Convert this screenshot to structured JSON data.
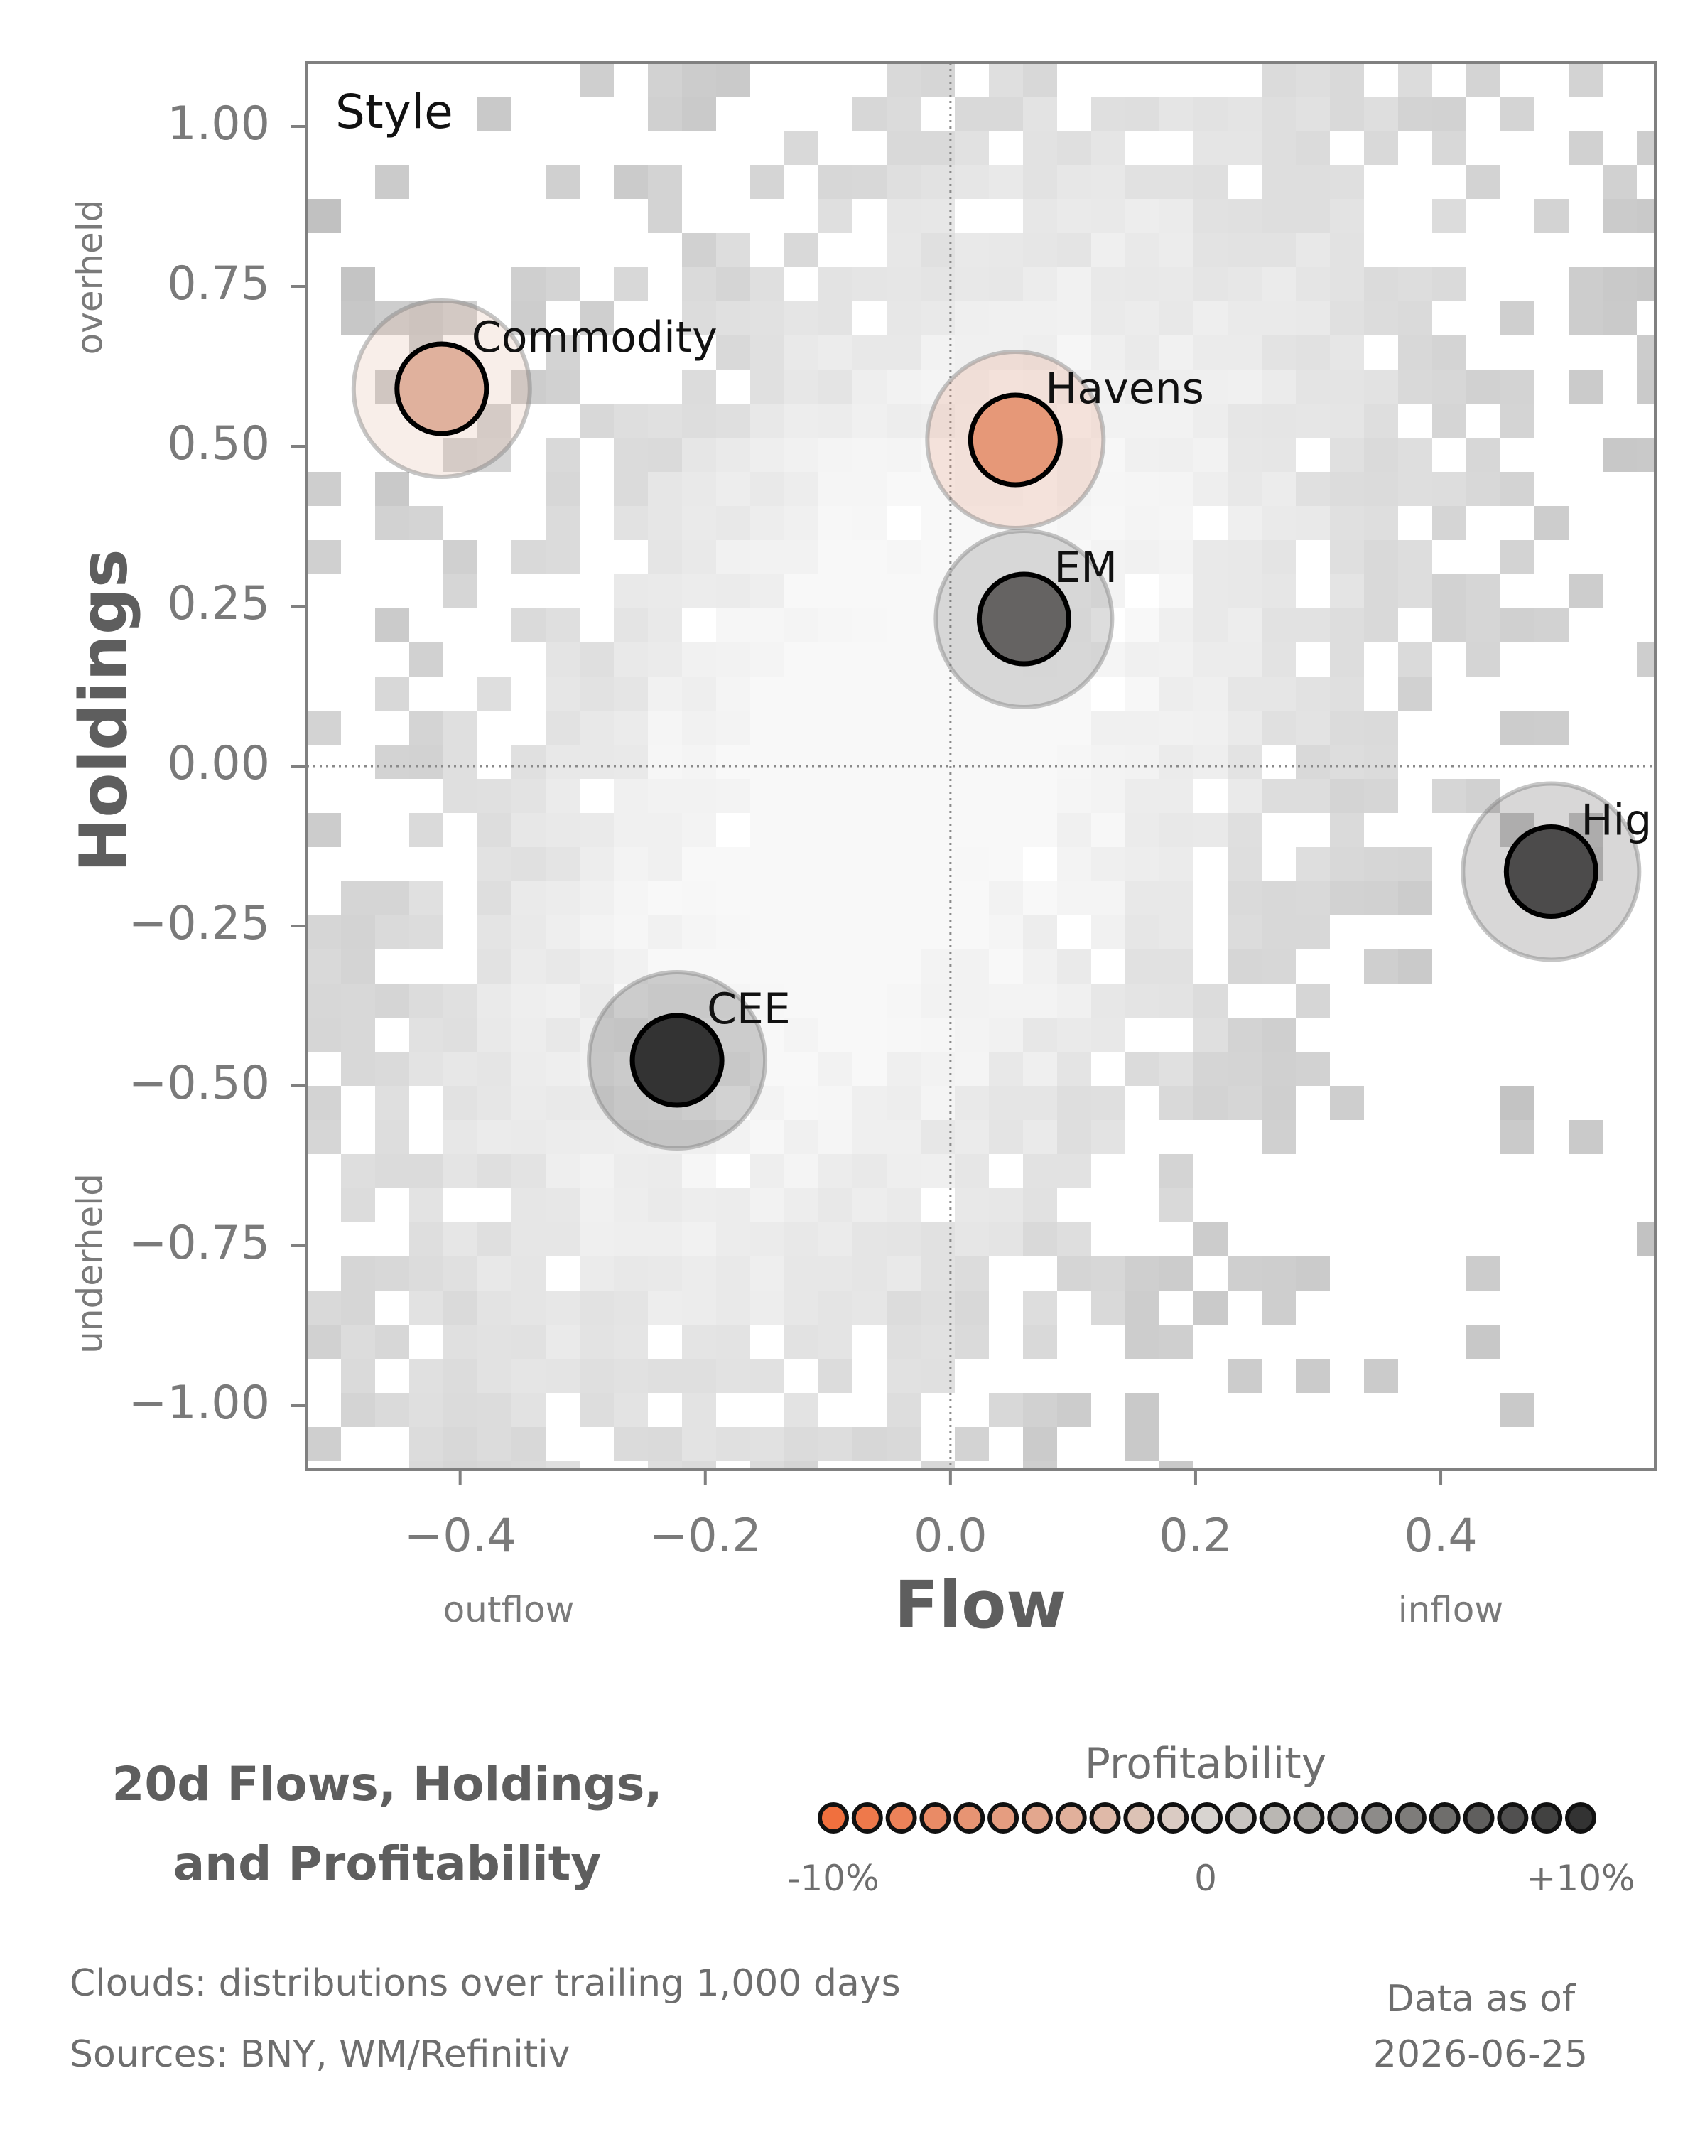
{
  "chart_data": {
    "type": "scatter",
    "panel_label": "Style",
    "xlabel": "Flow",
    "ylabel": "Holdings",
    "xlim": [
      -0.525,
      0.575
    ],
    "ylim": [
      -1.1,
      1.1
    ],
    "xticks": [
      -0.4,
      -0.2,
      0.0,
      0.2,
      0.4
    ],
    "xtick_labels": [
      "−0.4",
      "−0.2",
      "0.0",
      "0.2",
      "0.4"
    ],
    "yticks": [
      1.0,
      0.75,
      0.5,
      0.25,
      0.0,
      -0.25,
      -0.5,
      -0.75,
      -1.0
    ],
    "ytick_labels": [
      "1.00",
      "0.75",
      "0.50",
      "0.25",
      "0.00",
      "−0.25",
      "−0.50",
      "−0.75",
      "−1.00"
    ],
    "x_side_labels": {
      "left": "outflow",
      "right": "inflow"
    },
    "y_side_labels": {
      "top": "overheld",
      "bottom": "underheld"
    },
    "reference_lines": {
      "x": 0,
      "y": 0
    },
    "points": [
      {
        "name": "Commodity",
        "x": -0.415,
        "y": 0.59,
        "profitability": -0.35
      },
      {
        "name": "Havens",
        "x": 0.053,
        "y": 0.51,
        "profitability": -0.6
      },
      {
        "name": "EM",
        "x": 0.06,
        "y": 0.23,
        "profitability": 0.7
      },
      {
        "name": "High Beta",
        "x": 0.49,
        "y": -0.165,
        "profitability": 0.85
      },
      {
        "name": "CEE",
        "x": -0.223,
        "y": -0.46,
        "profitability": 1.0
      }
    ],
    "background": "distribution clouds (grey 2D histogram)",
    "legend": {
      "title": "Profitability",
      "tick_labels": [
        "-10%",
        "0",
        "+10%"
      ],
      "low_color": "#f0703e",
      "mid_color": "#d8d4d0",
      "high_color": "#333333",
      "swatch_count": 23
    }
  },
  "caption": {
    "title_line1": "20d Flows, Holdings,",
    "title_line2": "and Profitability"
  },
  "footnotes": {
    "clouds": "Clouds:  distributions over trailing 1,000 days",
    "sources": "Sources:  BNY, WM/Refinitiv",
    "date_label": "Data as of",
    "date": "2026-06-25"
  }
}
